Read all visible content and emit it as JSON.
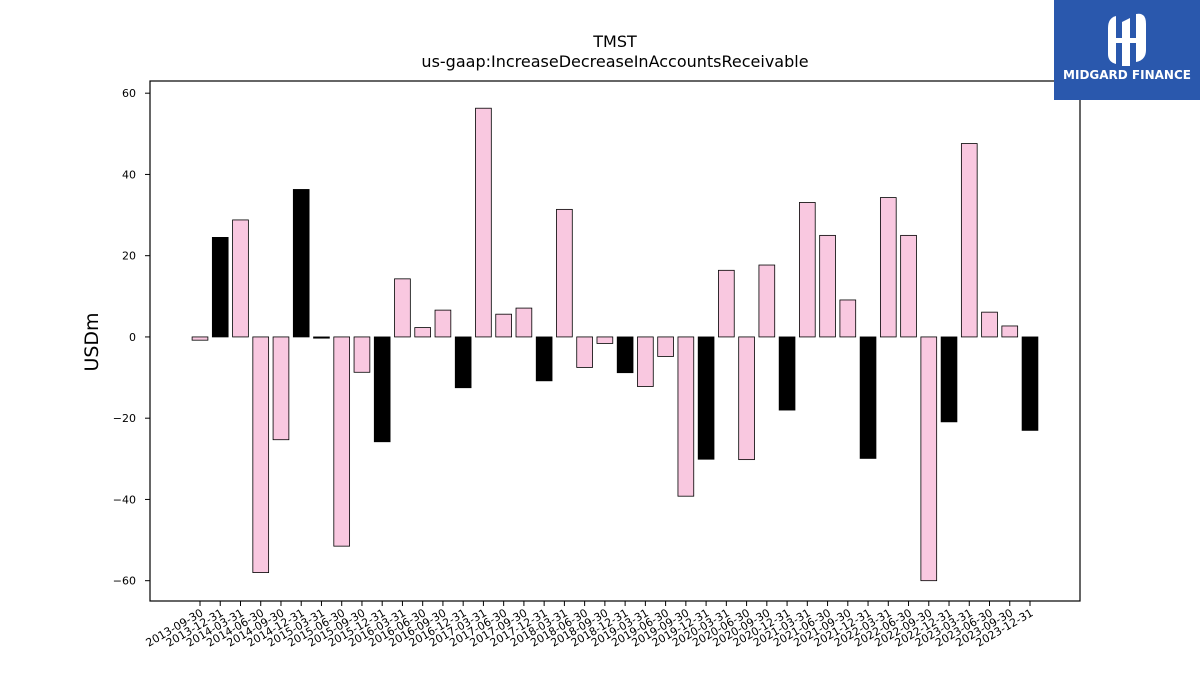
{
  "logo": {
    "text": "MIDGARD FINANCE",
    "bg_color": "#2a58ad",
    "icon": "midgard-logo-icon"
  },
  "colors": {
    "positive_bar": "#f9c8e0",
    "highlight_bar": "#000000",
    "bar_edge": "#000000",
    "axis": "#000000"
  },
  "chart_data": {
    "type": "bar",
    "title": "TMST",
    "subtitle": "us-gaap:IncreaseDecreaseInAccountsReceivable",
    "xlabel": "",
    "ylabel": "USDm",
    "ylim": [
      -65,
      63
    ],
    "yticks": [
      60,
      40,
      20,
      0,
      -20,
      -40,
      -60
    ],
    "grid": false,
    "categories": [
      "2013-09-30",
      "2013-12-31",
      "2014-03-31",
      "2014-06-30",
      "2014-09-30",
      "2014-12-31",
      "2015-03-31",
      "2015-06-30",
      "2015-09-30",
      "2015-12-31",
      "2016-03-31",
      "2016-06-30",
      "2016-09-30",
      "2016-12-31",
      "2017-03-31",
      "2017-06-30",
      "2017-09-30",
      "2017-12-31",
      "2018-03-31",
      "2018-06-30",
      "2018-09-30",
      "2018-12-31",
      "2019-03-31",
      "2019-06-30",
      "2019-09-30",
      "2019-12-31",
      "2020-03-31",
      "2020-06-30",
      "2020-09-30",
      "2020-12-31",
      "2021-03-31",
      "2021-06-30",
      "2021-09-30",
      "2021-12-31",
      "2022-03-31",
      "2022-06-30",
      "2022-09-30",
      "2022-12-31",
      "2023-03-31",
      "2023-06-30",
      "2023-09-30",
      "2023-12-31"
    ],
    "values": [
      -0.8,
      24.5,
      28.8,
      -58.0,
      -25.3,
      36.3,
      -0.3,
      -51.5,
      -8.7,
      -25.8,
      14.3,
      2.3,
      6.6,
      -12.5,
      56.3,
      5.6,
      7.1,
      -10.8,
      31.4,
      -7.5,
      -1.6,
      -8.8,
      -12.2,
      -4.8,
      -39.2,
      -30.1,
      16.4,
      -30.2,
      17.7,
      -18.0,
      33.1,
      25.0,
      9.1,
      -29.9,
      34.3,
      25.0,
      -60.0,
      -20.9,
      47.6,
      6.1,
      2.7,
      -23.0
    ],
    "highlighted": [
      false,
      true,
      false,
      false,
      false,
      true,
      true,
      false,
      false,
      true,
      false,
      false,
      false,
      true,
      false,
      false,
      false,
      true,
      false,
      false,
      false,
      true,
      false,
      false,
      false,
      true,
      false,
      false,
      false,
      true,
      false,
      false,
      false,
      true,
      false,
      false,
      false,
      true,
      false,
      false,
      false,
      true
    ]
  }
}
